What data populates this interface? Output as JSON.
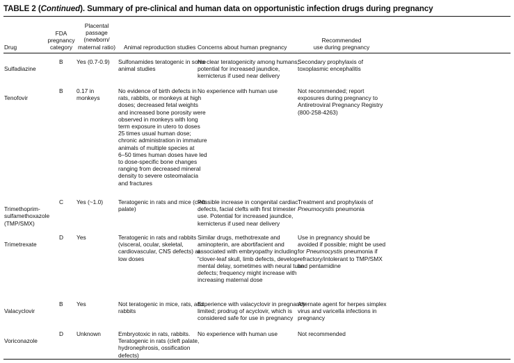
{
  "title": {
    "pre": "TABLE 2 (",
    "italic": "Continued",
    "post": "). Summary of pre-clinical and human data on opportunistic infection drugs during pregnancy"
  },
  "headers": {
    "drug": "Drug",
    "fda": "FDA\npregnancy\ncategory",
    "placental": "Placental\npassage\n(newborn/\nmaternal ratio)",
    "animal": "Animal reproduction studies",
    "concerns": "Concerns about human pregnancy",
    "recommended": "Recommended\nuse during pregnancy"
  },
  "rows": [
    {
      "drug": "Sulfadiazine",
      "fda": "B",
      "placental": "Yes (0.7-0.9)",
      "animal": "Sulfonamides teratogenic in some\nanimal studies",
      "concerns": "No clear teratogenicity among humans;\npotential for increased jaundice,\nkernicterus if used near delivery",
      "recommended": "Secondary prophylaxis of\ntoxoplasmic encephalitis"
    },
    {
      "drug": "Tenofovir",
      "fda": "B",
      "placental": "0.17 in\nmonkeys",
      "animal": "No evidence of birth defects in\nrats, rabbits, or monkeys at high\ndoses; decreased fetal weights\nand increased bone porosity were\nobserved in monkeys with long\nterm exposure in utero to doses\n25 times usual human dose;\nchronic administration in immature\nanimals of multiple species at\n6–50 times human doses have led\nto dose-specific bone changes\nranging from decreased mineral\ndensity to severe osteomalacia\nand fractures",
      "concerns": "No experience with human use",
      "recommended": "Not recommended; report\nexposures during pregnancy to\nAntiretroviral Pregnancy Registry\n(800-258-4263)"
    },
    {
      "drug": "Trimethoprim-\nsulfamethoxazole\n(TMP/SMX)",
      "fda": "C",
      "placental": "Yes (~1.0)",
      "animal": "Teratogenic in rats and mice (cleft\npalate)",
      "concerns": "Possible increase in congenital cardiac\ndefects, facial clefts with first trimester\nuse. Potential for increased jaundice,\nkernicterus if used near delivery",
      "recommended_pre": "Treatment and prophylaxis of\n",
      "recommended_italic": "Pneumocystis",
      "recommended_post": " pneumonia"
    },
    {
      "drug": "Trimetrexate",
      "fda": "D",
      "placental": "Yes",
      "animal": "Teratogenic in rats and rabbits\n(visceral, ocular, skeletal,\ncardiovascular, CNS defects) at\nlow doses",
      "concerns": "Similar drugs, methotrexate and\naminopterin, are abortifacient and\nassociated with embryopathy including\n“clover-leaf skull, limb defects, develop-\nmental delay, sometimes with neural tube\ndefects; frequency might increase with\nincreasing maternal dose",
      "recommended_pre": "Use in pregnancy should be\navoided if possible; might be used\nfor ",
      "recommended_italic": "Pneumocystis",
      "recommended_post": " pneumonia if\nrefractory/intolerant to TMP/SMX\nand pentamidine"
    },
    {
      "drug": "Valacyclovir",
      "fda": "B",
      "placental": "Yes",
      "animal": "Not teratogenic in mice, rats, and\nrabbits",
      "concerns": "Experience with valacyclovir in pregnancy\nlimited; prodrug of acyclovir, which is\nconsidered safe for use in pregnancy",
      "recommended": "Alternate agent for herpes simplex\nvirus and varicella infections in\npregnancy"
    },
    {
      "drug": "Voriconazole",
      "fda": "D",
      "placental": "Unknown",
      "animal": "Embryotoxic in rats, rabbits.\nTeratogenic in rats (cleft palate,\nhydronephrosis, ossification\ndefects)",
      "concerns": "No experience with human use",
      "recommended": "Not recommended"
    }
  ]
}
